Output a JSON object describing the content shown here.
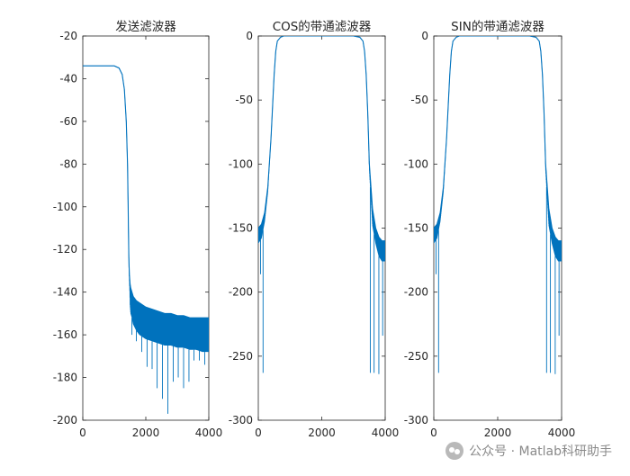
{
  "watermark": {
    "text": "公众号 · Matlab科研助手",
    "icon": "wechat-icon"
  },
  "colors": {
    "line": "#0072bd",
    "axis": "#262626",
    "background": "#ffffff"
  },
  "chart_data": [
    {
      "type": "line",
      "title": "发送滤波器",
      "xlabel": "",
      "ylabel": "",
      "xlim": [
        0,
        4000
      ],
      "ylim": [
        -200,
        -20
      ],
      "xticks": [
        0,
        2000,
        4000
      ],
      "yticks": [
        -20,
        -40,
        -60,
        -80,
        -100,
        -120,
        -140,
        -160,
        -180,
        -200
      ],
      "grid": false,
      "series": [
        {
          "x": [
            0,
            1000,
            1150,
            1250,
            1320,
            1380,
            1420,
            1440,
            1450,
            1460,
            1470,
            1480,
            1490,
            1500,
            1520,
            1560,
            1600,
            1700,
            1800,
            2000,
            2200,
            2400,
            2600,
            2800,
            3000,
            3200,
            3400,
            3600,
            3800,
            4000
          ],
          "y": [
            -34,
            -34,
            -35,
            -38,
            -45,
            -60,
            -80,
            -100,
            -112,
            -122,
            -128,
            -132,
            -134,
            -136,
            -138,
            -140,
            -142,
            -144,
            -145,
            -147,
            -148,
            -149,
            -150,
            -150,
            -151,
            -151,
            -152,
            -152,
            -152,
            -152
          ],
          "band_lo": [
            -34,
            -34,
            -35,
            -38,
            -45,
            -60,
            -80,
            -100,
            -112,
            -124,
            -132,
            -136,
            -140,
            -146,
            -150,
            -152,
            -155,
            -158,
            -160,
            -162,
            -163,
            -164,
            -165,
            -165,
            -166,
            -166,
            -167,
            -167,
            -168,
            -168
          ],
          "notches": [
            [
              1560,
              -160
            ],
            [
              1700,
              -163
            ],
            [
              1870,
              -168
            ],
            [
              2040,
              -175
            ],
            [
              2200,
              -176
            ],
            [
              2360,
              -185
            ],
            [
              2530,
              -190
            ],
            [
              2700,
              -197
            ],
            [
              2870,
              -182
            ],
            [
              3030,
              -180
            ],
            [
              3200,
              -185
            ],
            [
              3370,
              -182
            ],
            [
              3530,
              -172
            ],
            [
              3700,
              -172
            ],
            [
              3870,
              -174
            ]
          ]
        }
      ]
    },
    {
      "type": "line",
      "title": "COS的带通滤波器",
      "xlabel": "",
      "ylabel": "",
      "xlim": [
        0,
        4000
      ],
      "ylim": [
        -300,
        0
      ],
      "xticks": [
        0,
        2000,
        4000
      ],
      "yticks": [
        0,
        -50,
        -100,
        -150,
        -200,
        -250,
        -300
      ],
      "grid": false,
      "series": [
        {
          "x": [
            0,
            100,
            200,
            300,
            400,
            450,
            500,
            550,
            600,
            700,
            800,
            1000,
            2000,
            3000,
            3200,
            3300,
            3350,
            3400,
            3450,
            3500,
            3600,
            3700,
            3800,
            3900,
            4000
          ],
          "y": [
            -150,
            -147,
            -138,
            -118,
            -80,
            -55,
            -30,
            -12,
            -4,
            -1,
            0,
            0,
            0,
            0,
            -1,
            -4,
            -12,
            -30,
            -60,
            -100,
            -135,
            -150,
            -157,
            -160,
            -160
          ],
          "band_lo": [
            -162,
            -158,
            -145,
            -122,
            -80,
            -55,
            -30,
            -12,
            -4,
            -1,
            0,
            0,
            0,
            0,
            -1,
            -4,
            -12,
            -30,
            -60,
            -105,
            -148,
            -162,
            -172,
            -176,
            -176
          ],
          "notches": [
            [
              70,
              -186
            ],
            [
              150,
              -263
            ],
            [
              3530,
              -263
            ],
            [
              3650,
              -263
            ],
            [
              3800,
              -264
            ],
            [
              3920,
              -234
            ]
          ]
        }
      ]
    },
    {
      "type": "line",
      "title": "SIN的带通滤波器",
      "xlabel": "",
      "ylabel": "",
      "xlim": [
        0,
        4000
      ],
      "ylim": [
        -300,
        0
      ],
      "xticks": [
        0,
        2000,
        4000
      ],
      "yticks": [
        0,
        -50,
        -100,
        -150,
        -200,
        -250,
        -300
      ],
      "grid": false,
      "series": [
        {
          "x": [
            0,
            100,
            200,
            300,
            400,
            450,
            500,
            550,
            600,
            700,
            800,
            1000,
            2000,
            3000,
            3200,
            3300,
            3350,
            3400,
            3450,
            3500,
            3600,
            3700,
            3800,
            3900,
            4000
          ],
          "y": [
            -150,
            -147,
            -138,
            -118,
            -80,
            -55,
            -30,
            -12,
            -4,
            -1,
            0,
            0,
            0,
            0,
            -1,
            -4,
            -12,
            -30,
            -60,
            -100,
            -135,
            -150,
            -157,
            -160,
            -160
          ],
          "band_lo": [
            -162,
            -158,
            -145,
            -122,
            -80,
            -55,
            -30,
            -12,
            -4,
            -1,
            0,
            0,
            0,
            0,
            -1,
            -4,
            -12,
            -30,
            -60,
            -105,
            -148,
            -162,
            -172,
            -176,
            -176
          ],
          "notches": [
            [
              70,
              -186
            ],
            [
              150,
              -263
            ],
            [
              3530,
              -263
            ],
            [
              3650,
              -263
            ],
            [
              3800,
              -264
            ],
            [
              3920,
              -234
            ]
          ]
        }
      ]
    }
  ]
}
